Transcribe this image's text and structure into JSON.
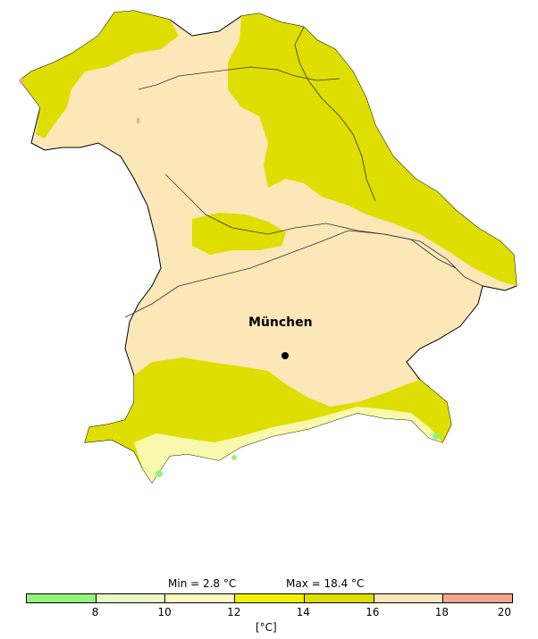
{
  "map": {
    "city": {
      "name": "München"
    },
    "region_colors": {
      "border": "#000000",
      "river": "#333333",
      "class_12_14": "#f2f200",
      "class_14_16": "#dede00",
      "class_16_18": "#fbe7b7",
      "class_18_20": "#f6a58b",
      "class_10_12": "#fcfcc0",
      "class_8_10": "#e8f9c7",
      "class_lt8": "#93f27b"
    }
  },
  "stats": {
    "min_label": "Min = 2.8 °C",
    "max_label": "Max = 18.4 °C"
  },
  "legend": {
    "unit": "[°C]",
    "ticks": [
      "8",
      "10",
      "12",
      "14",
      "16",
      "18",
      "20"
    ],
    "colors": [
      "#93f27b",
      "#e8f9c7",
      "#fcfcc0",
      "#f2f200",
      "#dede00",
      "#fbe7b7",
      "#f6a58b"
    ]
  }
}
